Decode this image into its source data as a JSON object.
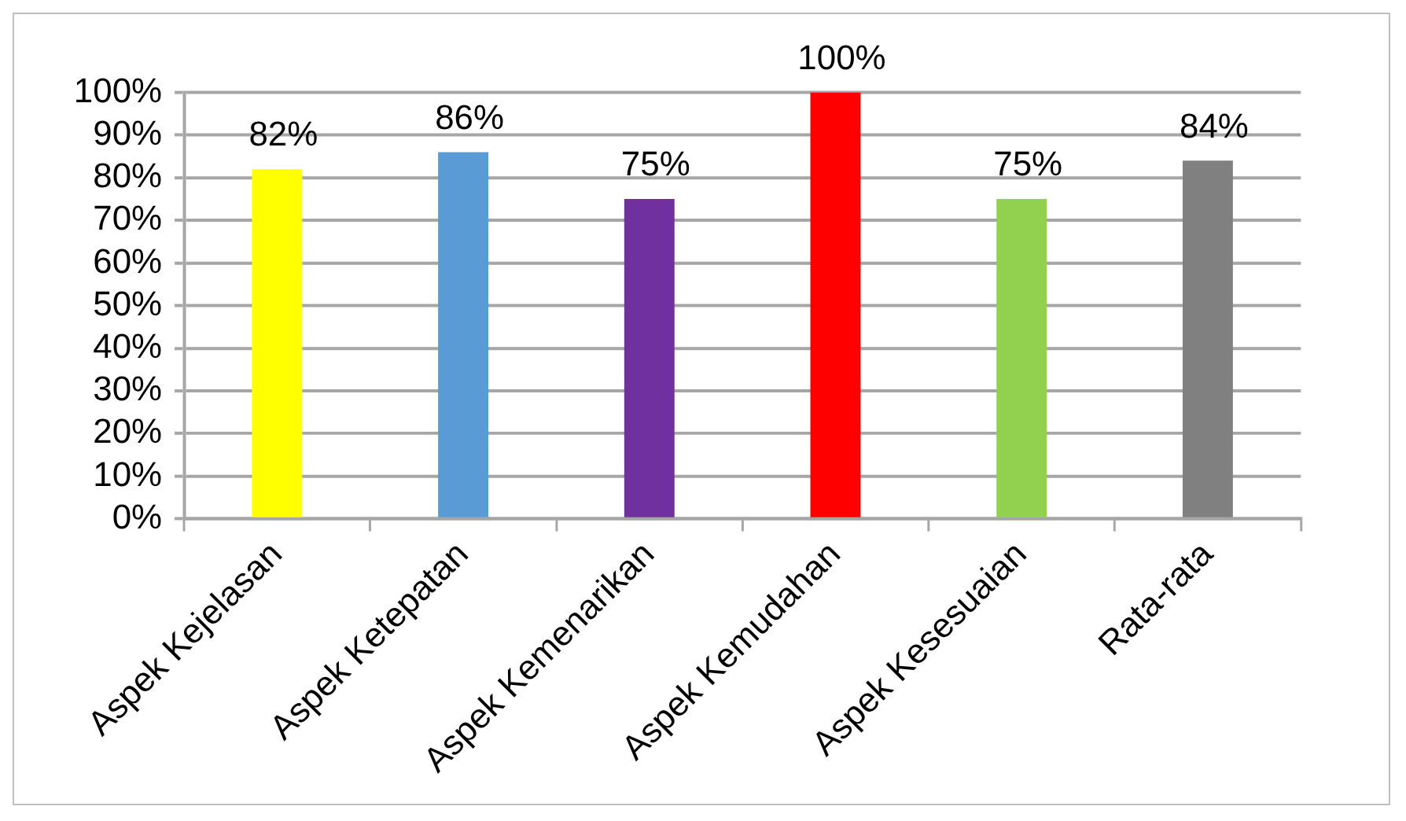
{
  "chart_data": {
    "type": "bar",
    "categories": [
      "Aspek Kejelasan",
      "Aspek Ketepatan",
      "Aspek Kemenarikan",
      "Aspek Kemudahan",
      "Aspek Kesesuaian",
      "Rata-rata"
    ],
    "values": [
      82,
      86,
      75,
      100,
      75,
      84
    ],
    "colors": [
      "#ffff00",
      "#5b9bd5",
      "#7030a0",
      "#ff0000",
      "#92d050",
      "#808080"
    ],
    "value_labels": [
      "82%",
      "86%",
      "75%",
      "100%",
      "75%",
      "84%"
    ],
    "ylim": [
      0,
      100
    ],
    "yticks": [
      {
        "value": 0,
        "label": "0%"
      },
      {
        "value": 10,
        "label": "10%"
      },
      {
        "value": 20,
        "label": "20%"
      },
      {
        "value": 30,
        "label": "30%"
      },
      {
        "value": 40,
        "label": "40%"
      },
      {
        "value": 50,
        "label": "50%"
      },
      {
        "value": 60,
        "label": "60%"
      },
      {
        "value": 70,
        "label": "70%"
      },
      {
        "value": 80,
        "label": "80%"
      },
      {
        "value": 90,
        "label": "90%"
      },
      {
        "value": 100,
        "label": "100%"
      }
    ],
    "grid": "y",
    "legend": false
  }
}
